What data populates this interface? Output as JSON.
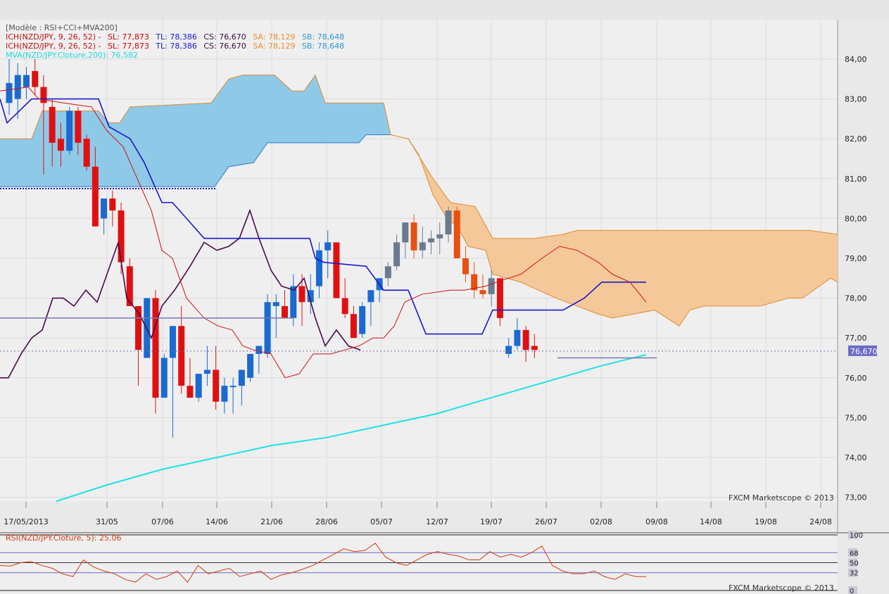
{
  "chart_data": [
    {
      "type": "candlestick",
      "title": "Modèle : RSI+CCI+MVA200",
      "instrument": "NZD/JPY",
      "watermark": "FXCM Marketscope © 2013",
      "ylim": [
        72.8,
        84.8
      ],
      "y_ticks": [
        "84,00",
        "83,00",
        "82,00",
        "81,00",
        "80,00",
        "79,00",
        "78,00",
        "77,00",
        "76,00",
        "75,00",
        "74,00",
        "73,00"
      ],
      "x_ticks": [
        "17/05/2013",
        "31/05",
        "07/06",
        "14/06",
        "21/06",
        "28/06",
        "05/07",
        "12/07",
        "19/07",
        "26/07",
        "02/08",
        "09/08",
        "14/08",
        "19/08",
        "24/08"
      ],
      "last_price": "76,670",
      "legend": [
        {
          "text": "ICH(NZD/JPY, 9, 26, 52) -",
          "parts": [
            {
              "label": "SL: 77,873",
              "color": "#d40000"
            },
            {
              "label": "TL: 78,386",
              "color": "#1a1ac8"
            },
            {
              "label": "CS: 76,670",
              "color": "#3a0a3a"
            },
            {
              "label": "SA: 78,129",
              "color": "#f08a2a"
            },
            {
              "label": "SB: 78,648",
              "color": "#2a9ad0"
            }
          ]
        },
        {
          "text": "ICH(NZD/JPY, 9, 26, 52) -",
          "parts": [
            {
              "label": "SL: 77,873",
              "color": "#d40000"
            },
            {
              "label": "TL: 78,386",
              "color": "#1a1ac8"
            },
            {
              "label": "CS: 76,670",
              "color": "#3a0a3a"
            },
            {
              "label": "SA: 78,129",
              "color": "#f08a2a"
            },
            {
              "label": "SB: 78,648",
              "color": "#2a9ad0"
            }
          ]
        }
      ],
      "mva_label": "MVA(NZD/JPY.Cloture,200): 76,582",
      "candles": [
        {
          "o": 82.9,
          "h": 84.0,
          "l": 82.6,
          "c": 83.4
        },
        {
          "o": 83.0,
          "h": 83.9,
          "l": 82.5,
          "c": 83.6
        },
        {
          "o": 83.3,
          "h": 83.8,
          "l": 83.0,
          "c": 83.6
        },
        {
          "o": 83.7,
          "h": 84.0,
          "l": 83.1,
          "c": 83.3
        },
        {
          "o": 83.3,
          "h": 83.6,
          "l": 81.1,
          "c": 82.9
        },
        {
          "o": 82.8,
          "h": 83.0,
          "l": 81.3,
          "c": 81.9
        },
        {
          "o": 82.0,
          "h": 82.4,
          "l": 81.3,
          "c": 81.7
        },
        {
          "o": 81.7,
          "h": 82.8,
          "l": 81.6,
          "c": 82.7
        },
        {
          "o": 82.7,
          "h": 82.8,
          "l": 81.6,
          "c": 81.9
        },
        {
          "o": 82.0,
          "h": 82.1,
          "l": 81.2,
          "c": 81.3
        },
        {
          "o": 81.3,
          "h": 81.8,
          "l": 79.8,
          "c": 79.8
        },
        {
          "o": 80.0,
          "h": 80.5,
          "l": 79.6,
          "c": 80.5
        },
        {
          "o": 80.5,
          "h": 80.7,
          "l": 79.8,
          "c": 80.2
        },
        {
          "o": 80.2,
          "h": 80.4,
          "l": 78.6,
          "c": 78.9
        },
        {
          "o": 78.8,
          "h": 79.0,
          "l": 77.8,
          "c": 77.8
        },
        {
          "o": 77.8,
          "h": 77.8,
          "l": 75.8,
          "c": 76.7
        },
        {
          "o": 76.5,
          "h": 78.0,
          "l": 76.5,
          "c": 78.0
        },
        {
          "o": 78.0,
          "h": 78.2,
          "l": 75.1,
          "c": 75.5
        },
        {
          "o": 75.5,
          "h": 76.6,
          "l": 75.5,
          "c": 76.5
        },
        {
          "o": 76.5,
          "h": 77.3,
          "l": 74.5,
          "c": 77.3
        },
        {
          "o": 77.3,
          "h": 77.8,
          "l": 75.6,
          "c": 75.8
        },
        {
          "o": 75.8,
          "h": 76.5,
          "l": 75.5,
          "c": 75.5
        },
        {
          "o": 75.5,
          "h": 76.1,
          "l": 75.4,
          "c": 76.1
        },
        {
          "o": 76.1,
          "h": 76.8,
          "l": 75.8,
          "c": 76.2
        },
        {
          "o": 76.2,
          "h": 76.8,
          "l": 75.2,
          "c": 75.4
        },
        {
          "o": 75.4,
          "h": 76.0,
          "l": 75.1,
          "c": 75.8
        },
        {
          "o": 75.8,
          "h": 76.0,
          "l": 75.1,
          "c": 75.8
        },
        {
          "o": 75.8,
          "h": 76.2,
          "l": 75.3,
          "c": 76.2
        },
        {
          "o": 76.0,
          "h": 76.6,
          "l": 75.9,
          "c": 76.6
        },
        {
          "o": 76.6,
          "h": 76.8,
          "l": 76.1,
          "c": 76.8
        },
        {
          "o": 76.6,
          "h": 78.1,
          "l": 76.5,
          "c": 77.9
        },
        {
          "o": 77.8,
          "h": 78.1,
          "l": 77.0,
          "c": 77.9
        },
        {
          "o": 77.8,
          "h": 78.2,
          "l": 77.6,
          "c": 77.5
        },
        {
          "o": 77.5,
          "h": 78.6,
          "l": 77.3,
          "c": 78.3
        },
        {
          "o": 78.3,
          "h": 78.6,
          "l": 77.3,
          "c": 77.9
        },
        {
          "o": 77.9,
          "h": 78.6,
          "l": 77.6,
          "c": 78.2
        },
        {
          "o": 78.3,
          "h": 79.4,
          "l": 78.0,
          "c": 79.2
        },
        {
          "o": 79.2,
          "h": 79.7,
          "l": 78.5,
          "c": 79.4
        },
        {
          "o": 79.4,
          "h": 79.4,
          "l": 78.0,
          "c": 78.0
        },
        {
          "o": 78.0,
          "h": 78.5,
          "l": 77.5,
          "c": 77.6
        },
        {
          "o": 77.6,
          "h": 77.8,
          "l": 77.0,
          "c": 77.0
        },
        {
          "o": 77.1,
          "h": 77.9,
          "l": 77.0,
          "c": 77.8
        },
        {
          "o": 77.9,
          "h": 78.2,
          "l": 77.3,
          "c": 78.2
        },
        {
          "o": 78.2,
          "h": 78.5,
          "l": 77.9,
          "c": 78.5
        },
        {
          "o": 78.5,
          "h": 78.9,
          "l": 78.3,
          "c": 78.8
        },
        {
          "o": 78.8,
          "h": 79.6,
          "l": 78.7,
          "c": 79.4
        },
        {
          "o": 79.4,
          "h": 79.9,
          "l": 79.0,
          "c": 79.9
        },
        {
          "o": 79.9,
          "h": 80.1,
          "l": 79.0,
          "c": 79.2
        },
        {
          "o": 79.2,
          "h": 79.8,
          "l": 79.0,
          "c": 79.4
        },
        {
          "o": 79.4,
          "h": 79.7,
          "l": 79.1,
          "c": 79.5
        },
        {
          "o": 79.5,
          "h": 79.9,
          "l": 79.1,
          "c": 79.6
        },
        {
          "o": 79.6,
          "h": 80.3,
          "l": 79.4,
          "c": 80.2
        },
        {
          "o": 80.2,
          "h": 80.3,
          "l": 79.0,
          "c": 79.0
        },
        {
          "o": 79.0,
          "h": 79.3,
          "l": 78.4,
          "c": 78.6
        },
        {
          "o": 78.6,
          "h": 78.9,
          "l": 78.0,
          "c": 78.2
        },
        {
          "o": 78.2,
          "h": 78.6,
          "l": 78.0,
          "c": 78.1
        },
        {
          "o": 78.1,
          "h": 78.7,
          "l": 77.8,
          "c": 78.5
        },
        {
          "o": 78.5,
          "h": 78.5,
          "l": 77.3,
          "c": 77.5
        },
        {
          "o": 76.6,
          "h": 77.0,
          "l": 76.5,
          "c": 76.8
        },
        {
          "o": 76.8,
          "h": 77.5,
          "l": 76.7,
          "c": 77.2
        },
        {
          "o": 77.2,
          "h": 77.3,
          "l": 76.4,
          "c": 76.7
        },
        {
          "o": 76.8,
          "h": 77.1,
          "l": 76.5,
          "c": 76.7
        }
      ]
    },
    {
      "type": "line",
      "title": "RSI(NZD/JPY.Cloture, 5): 25,06",
      "watermark": "FXCM Marketscope © 2013",
      "ylim": [
        0,
        100
      ],
      "y_ticks": [
        "100",
        "68",
        "50",
        "32",
        "0"
      ],
      "levels": [
        68,
        50,
        32
      ],
      "values": [
        45,
        44,
        50,
        52,
        45,
        40,
        30,
        25,
        55,
        42,
        35,
        30,
        20,
        15,
        30,
        20,
        25,
        35,
        15,
        45,
        30,
        35,
        40,
        25,
        30,
        35,
        20,
        28,
        32,
        38,
        45,
        55,
        65,
        75,
        70,
        72,
        85,
        60,
        50,
        45,
        55,
        65,
        70,
        65,
        62,
        55,
        55,
        70,
        60,
        65,
        60,
        68,
        80,
        45,
        35,
        30,
        30,
        35,
        25,
        20,
        30,
        25,
        25
      ]
    }
  ]
}
